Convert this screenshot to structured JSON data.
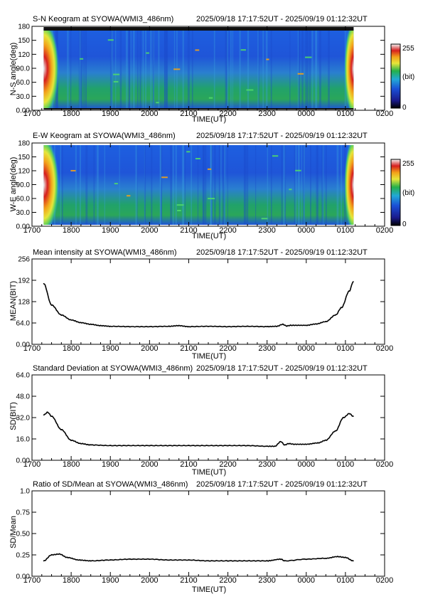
{
  "time_range_label": "2025/09/18 17:17:52UT - 2025/09/19 01:12:32UT",
  "x_axis": {
    "label": "TIME(UT)",
    "ticks": [
      "1700",
      "1800",
      "1900",
      "2000",
      "2100",
      "2200",
      "2300",
      "0000",
      "0100",
      "0200"
    ]
  },
  "colorbar": {
    "max_label": "255",
    "unit_label": "(bit)",
    "min_label": "0"
  },
  "colors": {
    "line": "#000000",
    "keogram_background": "#1a4fd6",
    "keogram_stripe": "#24b04a",
    "keogram_edge": "#d61f1f",
    "keogram_mask": "#ffffff",
    "keogram_topbar": "#111111"
  },
  "chart_data": [
    {
      "type": "heatmap",
      "title": "S-N Keogram at SYOWA(WMI3_486nm)",
      "xlabel": "TIME(UT)",
      "ylabel": "N-S angle(deg)",
      "y_ticks": [
        "0.00",
        "30.0",
        "60.0",
        "90.0",
        "120",
        "150",
        "180"
      ],
      "ylim": [
        0,
        180
      ],
      "xlim": [
        "17:00",
        "02:00"
      ],
      "data_range": [
        "17:17:52",
        "01:12:32"
      ],
      "colorbar_range": [
        0,
        255
      ]
    },
    {
      "type": "heatmap",
      "title": "E-W Keogram at SYOWA(WMI3_486nm)",
      "xlabel": "TIME(UT)",
      "ylabel": "W-E angle(deg)",
      "y_ticks": [
        "0.00",
        "30.0",
        "60.0",
        "90.0",
        "120",
        "150",
        "180"
      ],
      "ylim": [
        0,
        180
      ],
      "xlim": [
        "17:00",
        "02:00"
      ],
      "data_range": [
        "17:17:52",
        "01:12:32"
      ],
      "colorbar_range": [
        0,
        255
      ]
    },
    {
      "type": "line",
      "title": "Mean intensity at SYOWA(WMI3_486nm)",
      "xlabel": "TIME(UT)",
      "ylabel": "MEAN(BIT)",
      "y_ticks": [
        "0.00",
        "64.0",
        "128",
        "192",
        "256"
      ],
      "ylim": [
        0,
        256
      ],
      "x_hours": [
        17.3,
        17.5,
        17.75,
        18.0,
        18.25,
        18.5,
        18.75,
        19.0,
        19.5,
        20.0,
        20.5,
        20.75,
        21.0,
        21.5,
        22.0,
        22.5,
        23.0,
        23.25,
        23.4,
        23.5,
        23.6,
        24.0,
        24.25,
        24.5,
        24.75,
        24.9,
        25.1,
        25.2
      ],
      "values": [
        182,
        118,
        88,
        73,
        65,
        60,
        56,
        54,
        53,
        53,
        54,
        56,
        53,
        54,
        53,
        54,
        53,
        54,
        60,
        55,
        57,
        57,
        61,
        68,
        88,
        110,
        160,
        188
      ]
    },
    {
      "type": "line",
      "title": "Standard Deviation at SYOWA(WMI3_486nm)",
      "xlabel": "TIME(UT)",
      "ylabel": "SD(BIT)",
      "y_ticks": [
        "0.00",
        "16.0",
        "32.0",
        "48.0",
        "64.0"
      ],
      "ylim": [
        0,
        64
      ],
      "x_hours": [
        17.3,
        17.4,
        17.5,
        17.75,
        18.0,
        18.25,
        18.5,
        19.0,
        19.5,
        20.0,
        20.5,
        21.0,
        21.5,
        22.0,
        22.5,
        23.0,
        23.2,
        23.35,
        23.45,
        23.55,
        23.7,
        24.0,
        24.3,
        24.5,
        24.75,
        24.95,
        25.1,
        25.2
      ],
      "values": [
        34,
        36,
        33,
        23,
        15,
        12.5,
        11.5,
        11,
        11,
        11,
        11,
        11,
        11,
        11,
        11,
        10.5,
        10.5,
        14,
        11.5,
        12.5,
        12,
        12,
        13,
        15,
        22,
        32,
        35,
        33
      ]
    },
    {
      "type": "line",
      "title": "Ratio of SD/Mean at SYOWA(WMI3_486nm)",
      "xlabel": "TIME(UT)",
      "ylabel": "SD/Mean",
      "y_ticks": [
        "0.00",
        "0.25",
        "0.50",
        "0.75",
        "1.0"
      ],
      "ylim": [
        0,
        1
      ],
      "x_hours": [
        17.3,
        17.5,
        17.7,
        17.9,
        18.2,
        18.5,
        19.0,
        19.5,
        20.0,
        20.5,
        21.0,
        21.5,
        22.0,
        22.5,
        23.0,
        23.35,
        23.45,
        24.0,
        24.5,
        24.8,
        25.0,
        25.2
      ],
      "values": [
        0.18,
        0.25,
        0.26,
        0.22,
        0.19,
        0.18,
        0.19,
        0.2,
        0.2,
        0.19,
        0.19,
        0.18,
        0.18,
        0.18,
        0.18,
        0.2,
        0.18,
        0.2,
        0.21,
        0.23,
        0.22,
        0.18
      ]
    }
  ]
}
